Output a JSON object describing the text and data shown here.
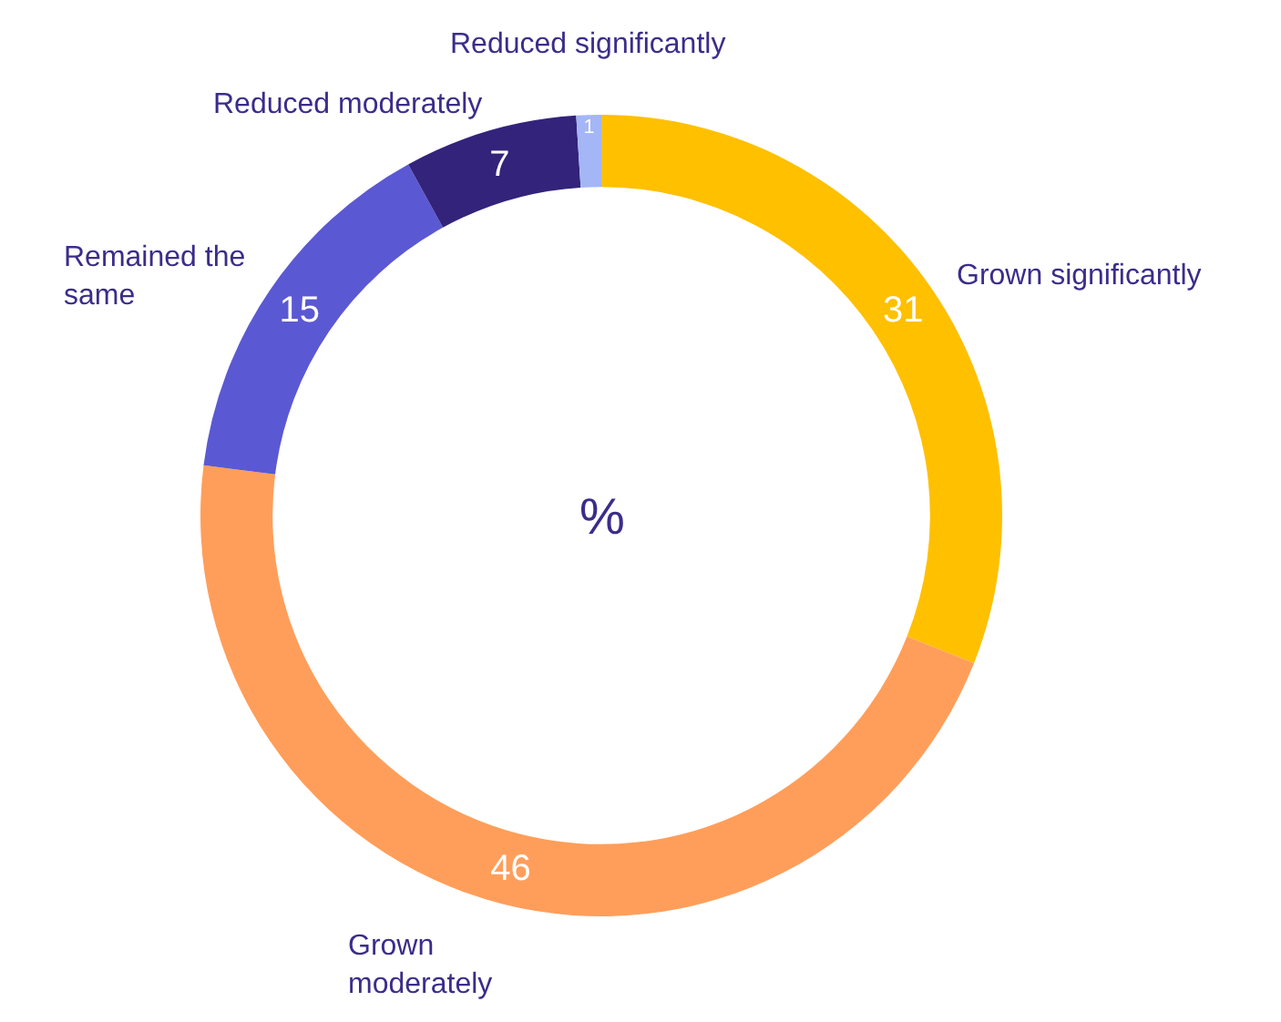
{
  "chart_data": {
    "type": "donut",
    "categories": [
      "Grown significantly",
      "Grown moderately",
      "Remained the same",
      "Reduced moderately",
      "Reduced significantly"
    ],
    "values": [
      31,
      46,
      15,
      7,
      1
    ],
    "colors": [
      "#ffc000",
      "#ff9e5a",
      "#5b58d3",
      "#33237b",
      "#a4b6f6"
    ],
    "data_labels": true,
    "annotations": [
      "%"
    ],
    "legend": false
  }
}
